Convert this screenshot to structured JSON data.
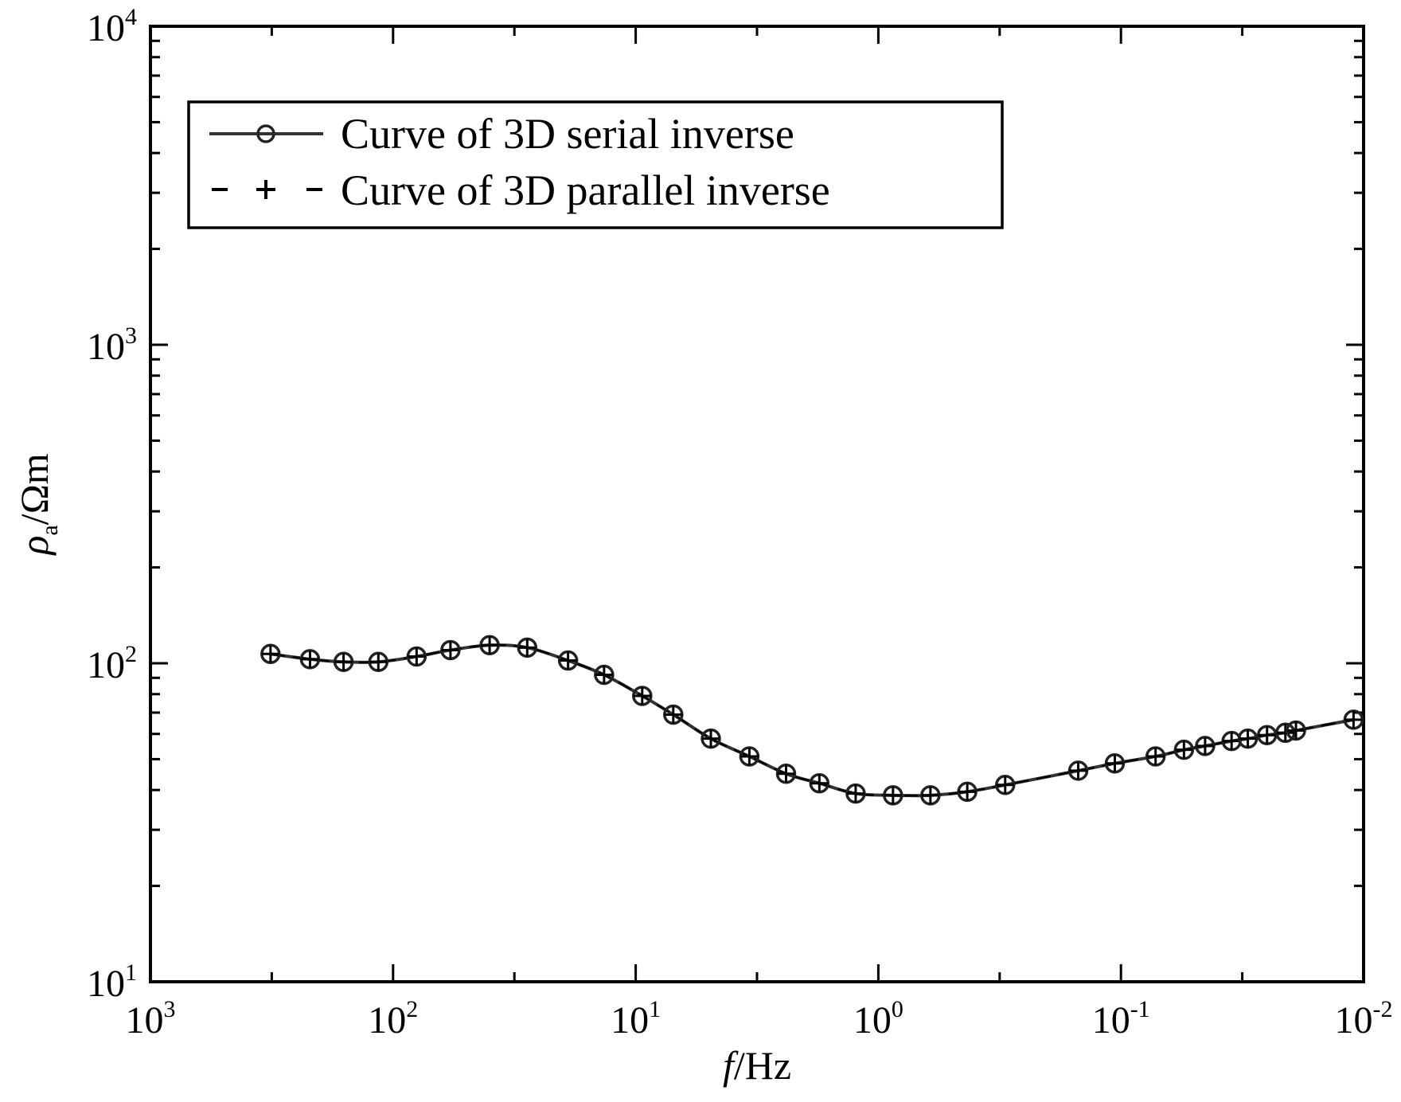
{
  "chart_data": {
    "type": "line",
    "title": "",
    "xlabel_italic": "f",
    "xlabel_rest": "/Hz",
    "ylabel_rho": "ρ",
    "ylabel_sub": "a",
    "ylabel_rest": "/Ωm",
    "xscale": "log",
    "yscale": "log",
    "x_reversed": true,
    "xlim": [
      1000,
      0.01
    ],
    "ylim": [
      10,
      10000
    ],
    "x_ticks": [
      {
        "base": "10",
        "exp": "3"
      },
      {
        "base": "10",
        "exp": "2"
      },
      {
        "base": "10",
        "exp": "1"
      },
      {
        "base": "10",
        "exp": "0"
      },
      {
        "base": "10",
        "exp": "-1"
      },
      {
        "base": "10",
        "exp": "-2"
      }
    ],
    "y_ticks": [
      {
        "base": "10",
        "exp": "1"
      },
      {
        "base": "10",
        "exp": "2"
      },
      {
        "base": "10",
        "exp": "3"
      },
      {
        "base": "10",
        "exp": "4"
      }
    ],
    "legend_position": "top-left",
    "series": [
      {
        "name": "Curve of 3D serial inverse",
        "style": "solid",
        "marker": "circle"
      },
      {
        "name": "Curve of 3D parallel inverse",
        "style": "dashed",
        "marker": "plus"
      }
    ],
    "x": [
      320,
      220,
      160,
      115,
      80,
      58,
      40,
      28,
      19,
      13.5,
      9.4,
      7,
      4.9,
      3.4,
      2.4,
      1.75,
      1.24,
      0.87,
      0.61,
      0.43,
      0.3,
      0.15,
      0.106,
      0.072,
      0.055,
      0.045,
      0.035,
      0.03,
      0.025,
      0.021,
      0.019,
      0.011
    ],
    "values": [
      107,
      103,
      101,
      101,
      105,
      110,
      114,
      112,
      102,
      92,
      79,
      69,
      58,
      51,
      45,
      42,
      39,
      38.5,
      38.5,
      39.5,
      41.5,
      46,
      48.5,
      51,
      53.5,
      55,
      57,
      58,
      59.5,
      60.5,
      61.5,
      66.5
    ]
  }
}
